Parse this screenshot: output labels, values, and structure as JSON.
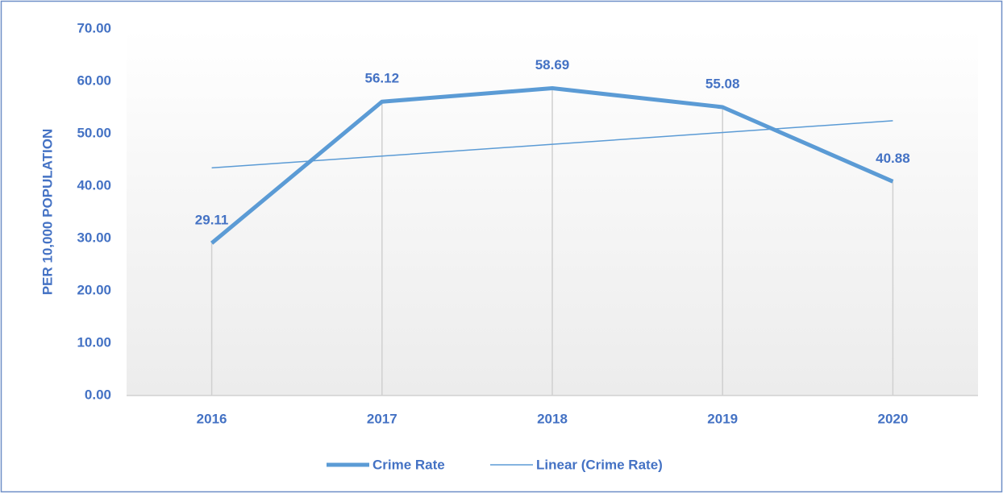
{
  "chart_data": {
    "type": "line",
    "y_label": "PER 10,000 POPULATION",
    "categories": [
      "2016",
      "2017",
      "2018",
      "2019",
      "2020"
    ],
    "series": [
      {
        "name": "Crime Rate",
        "color": "#5b9bd5",
        "values": [
          29.11,
          56.12,
          58.69,
          55.08,
          40.88
        ]
      },
      {
        "name": "Linear (Crime Rate)",
        "color": "#5b9bd5",
        "values": [
          43.48,
          45.73,
          47.98,
          50.23,
          52.48
        ]
      }
    ],
    "ylim": [
      0,
      70
    ],
    "yticks": [
      {
        "value": 0,
        "label": "0.00"
      },
      {
        "value": 10,
        "label": "10.00"
      },
      {
        "value": 20,
        "label": "20.00"
      },
      {
        "value": 30,
        "label": "30.00"
      },
      {
        "value": 40,
        "label": "40.00"
      },
      {
        "value": 50,
        "label": "50.00"
      },
      {
        "value": 60,
        "label": "60.00"
      },
      {
        "value": 70,
        "label": "70.00"
      }
    ],
    "drop_lines": true,
    "legend": "bottom"
  }
}
